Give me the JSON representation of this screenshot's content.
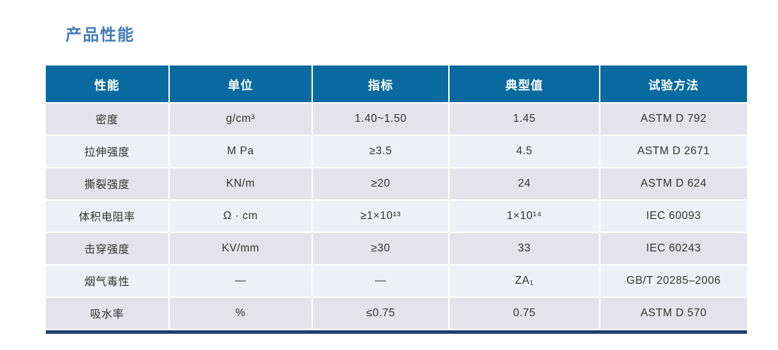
{
  "page": {
    "title": "产品性能"
  },
  "colors": {
    "header_bg": "#086a9e",
    "title_color": "#3f7cb6",
    "row_odd_bg": "#e4e3ec",
    "row_even_bg": "#eef0f7",
    "bottom_rule": "#1c3f6e"
  },
  "table": {
    "columns": [
      "性能",
      "单位",
      "指标",
      "典型值",
      "试验方法"
    ],
    "rows": [
      [
        "密度",
        "g/cm³",
        "1.40~1.50",
        "1.45",
        "ASTM D 792"
      ],
      [
        "拉伸强度",
        "M Pa",
        "≥3.5",
        "4.5",
        "ASTM D 2671"
      ],
      [
        "撕裂强度",
        "KN/m",
        "≥20",
        "24",
        "ASTM D 624"
      ],
      [
        "体积电阻率",
        "Ω · cm",
        "≥1×10¹³",
        "1×10¹⁴",
        "IEC 60093"
      ],
      [
        "击穿强度",
        "KV/mm",
        "≥30",
        "33",
        "IEC 60243"
      ],
      [
        "烟气毒性",
        "—",
        "—",
        "ZA₁",
        "GB/T 20285–2006"
      ],
      [
        "吸水率",
        "%",
        "≤0.75",
        "0.75",
        "ASTM D 570"
      ]
    ]
  }
}
